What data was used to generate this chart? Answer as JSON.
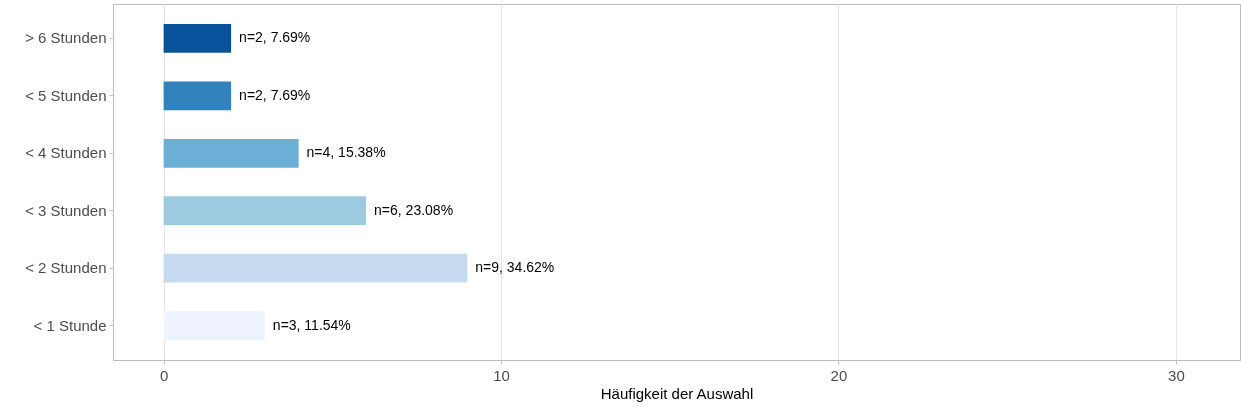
{
  "chart_data": {
    "type": "bar",
    "orientation": "horizontal",
    "xlabel": "Häufigkeit der Auswahl",
    "categories": [
      "> 6 Stunden",
      "< 5 Stunden",
      "< 4 Stunden",
      "< 3 Stunden",
      "< 2 Stunden",
      "< 1 Stunde"
    ],
    "values": [
      2,
      2,
      4,
      6,
      9,
      3
    ],
    "colors": [
      "#08519c",
      "#3182bd",
      "#6baed6",
      "#9ecae1",
      "#c6dbef",
      "#eff3ff"
    ],
    "value_labels": [
      "n=2, 7.69%",
      "n=2, 7.69%",
      "n=4, 15.38%",
      "n=6, 23.08%",
      "n=9, 34.62%",
      "n=3, 11.54%"
    ],
    "xlim": [
      -1.5,
      31.9
    ],
    "xticks": [
      0,
      10,
      20,
      30
    ],
    "grid": "x"
  }
}
